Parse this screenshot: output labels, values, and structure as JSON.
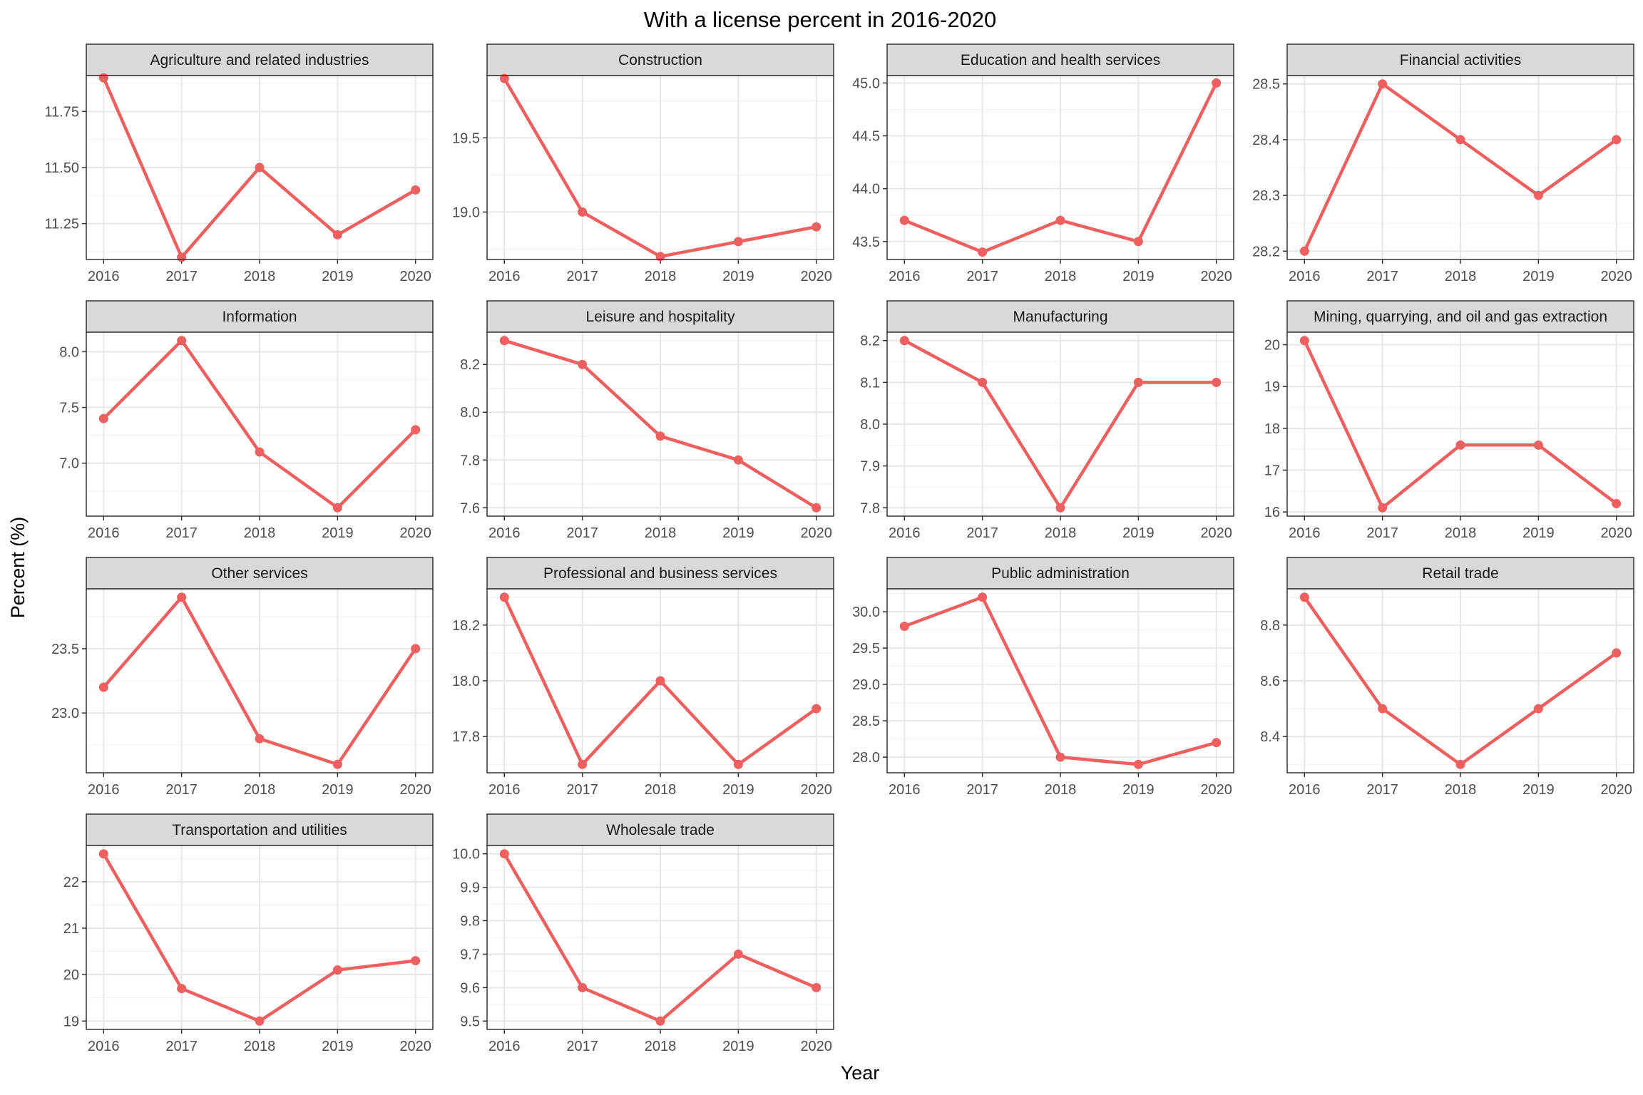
{
  "title": "With a license percent in 2016-2020",
  "xlabel": "Year",
  "ylabel": "Percent (%)",
  "colors": {
    "line": "#ee6060",
    "strip_bg": "#d9d9d9",
    "grid_major": "#e6e6e6",
    "grid_minor": "#f2f2f2",
    "panel_border": "#333333",
    "text": "#000000",
    "tick_text": "#4d4d4d"
  },
  "chart_data": {
    "type": "line",
    "facet_layout": "4 columns x 4 rows",
    "grid": true,
    "categories": [
      "2016",
      "2017",
      "2018",
      "2019",
      "2020"
    ],
    "panels": [
      {
        "title": "Agriculture and related industries",
        "values": [
          11.9,
          11.1,
          11.5,
          11.2,
          11.4
        ],
        "ylim": [
          11.09,
          11.91
        ],
        "yticks": [
          11.25,
          11.5,
          11.75
        ],
        "tick_labels": [
          "11.25",
          "11.50",
          "11.75"
        ],
        "yminor": [
          11.125,
          11.375,
          11.625,
          11.875
        ]
      },
      {
        "title": "Construction",
        "values": [
          19.9,
          19.0,
          18.7,
          18.8,
          18.9
        ],
        "ylim": [
          18.68,
          19.92
        ],
        "yticks": [
          19.0,
          19.5
        ],
        "tick_labels": [
          "19.0",
          "19.5"
        ],
        "yminor": [
          18.75,
          19.25,
          19.75
        ]
      },
      {
        "title": "Education and health services",
        "values": [
          43.7,
          43.4,
          43.7,
          43.5,
          45.0
        ],
        "ylim": [
          43.33,
          45.07
        ],
        "yticks": [
          43.5,
          44.0,
          44.5,
          45.0
        ],
        "tick_labels": [
          "43.5",
          "44.0",
          "44.5",
          "45.0"
        ],
        "yminor": [
          43.75,
          44.25,
          44.75
        ]
      },
      {
        "title": "Financial activities",
        "values": [
          28.2,
          28.5,
          28.4,
          28.3,
          28.4
        ],
        "ylim": [
          28.185,
          28.515
        ],
        "yticks": [
          28.2,
          28.3,
          28.4,
          28.5
        ],
        "tick_labels": [
          "28.2",
          "28.3",
          "28.4",
          "28.5"
        ],
        "yminor": [
          28.25,
          28.35,
          28.45
        ]
      },
      {
        "title": "Information",
        "values": [
          7.4,
          8.1,
          7.1,
          6.6,
          7.3
        ],
        "ylim": [
          6.525,
          8.175
        ],
        "yticks": [
          7.0,
          7.5,
          8.0
        ],
        "tick_labels": [
          "7.0",
          "7.5",
          "8.0"
        ],
        "yminor": [
          6.75,
          7.25,
          7.75
        ]
      },
      {
        "title": "Leisure and hospitality",
        "values": [
          8.3,
          8.2,
          7.9,
          7.8,
          7.6
        ],
        "ylim": [
          7.565,
          8.335
        ],
        "yticks": [
          7.6,
          7.8,
          8.0,
          8.2
        ],
        "tick_labels": [
          "7.6",
          "7.8",
          "8.0",
          "8.2"
        ],
        "yminor": [
          7.7,
          7.9,
          8.1,
          8.3
        ]
      },
      {
        "title": "Manufacturing",
        "values": [
          8.2,
          8.1,
          7.8,
          8.1,
          8.1
        ],
        "ylim": [
          7.78,
          8.22
        ],
        "yticks": [
          7.8,
          7.9,
          8.0,
          8.1,
          8.2
        ],
        "tick_labels": [
          "7.8",
          "7.9",
          "8.0",
          "8.1",
          "8.2"
        ],
        "yminor": [
          7.85,
          7.95,
          8.05,
          8.15
        ]
      },
      {
        "title": "Mining, quarrying, and oil and gas extraction",
        "values": [
          20.1,
          16.1,
          17.6,
          17.6,
          16.2
        ],
        "ylim": [
          15.9,
          20.3
        ],
        "yticks": [
          16,
          17,
          18,
          19,
          20
        ],
        "tick_labels": [
          "16",
          "17",
          "18",
          "19",
          "20"
        ],
        "yminor": [
          16.5,
          17.5,
          18.5,
          19.5
        ]
      },
      {
        "title": "Other services",
        "values": [
          23.2,
          23.9,
          22.8,
          22.6,
          23.5
        ],
        "ylim": [
          22.535,
          23.965
        ],
        "yticks": [
          23.0,
          23.5
        ],
        "tick_labels": [
          "23.0",
          "23.5"
        ],
        "yminor": [
          22.75,
          23.25,
          23.75
        ]
      },
      {
        "title": "Professional and business services",
        "values": [
          18.3,
          17.7,
          18.0,
          17.7,
          17.9
        ],
        "ylim": [
          17.67,
          18.33
        ],
        "yticks": [
          17.8,
          18.0,
          18.2
        ],
        "tick_labels": [
          "17.8",
          "18.0",
          "18.2"
        ],
        "yminor": [
          17.7,
          17.9,
          18.1,
          18.3
        ]
      },
      {
        "title": "Public administration",
        "values": [
          29.8,
          30.2,
          28.0,
          27.9,
          28.2
        ],
        "ylim": [
          27.785,
          30.315
        ],
        "yticks": [
          28.0,
          28.5,
          29.0,
          29.5,
          30.0
        ],
        "tick_labels": [
          "28.0",
          "28.5",
          "29.0",
          "29.5",
          "30.0"
        ],
        "yminor": [
          28.25,
          28.75,
          29.25,
          29.75,
          30.25
        ]
      },
      {
        "title": "Retail trade",
        "values": [
          8.9,
          8.5,
          8.3,
          8.5,
          8.7
        ],
        "ylim": [
          8.27,
          8.93
        ],
        "yticks": [
          8.4,
          8.6,
          8.8
        ],
        "tick_labels": [
          "8.4",
          "8.6",
          "8.8"
        ],
        "yminor": [
          8.3,
          8.5,
          8.7,
          8.9
        ]
      },
      {
        "title": "Transportation and utilities",
        "values": [
          22.6,
          19.7,
          19.0,
          20.1,
          20.3
        ],
        "ylim": [
          18.82,
          22.78
        ],
        "yticks": [
          19,
          20,
          21,
          22
        ],
        "tick_labels": [
          "19",
          "20",
          "21",
          "22"
        ],
        "yminor": [
          19.5,
          20.5,
          21.5,
          22.5
        ]
      },
      {
        "title": "Wholesale trade",
        "values": [
          10.0,
          9.6,
          9.5,
          9.7,
          9.6
        ],
        "ylim": [
          9.475,
          10.025
        ],
        "yticks": [
          9.5,
          9.6,
          9.7,
          9.8,
          9.9,
          10.0
        ],
        "tick_labels": [
          "9.5",
          "9.6",
          "9.7",
          "9.8",
          "9.9",
          "10.0"
        ],
        "yminor": [
          9.55,
          9.65,
          9.75,
          9.85,
          9.95
        ]
      }
    ]
  }
}
